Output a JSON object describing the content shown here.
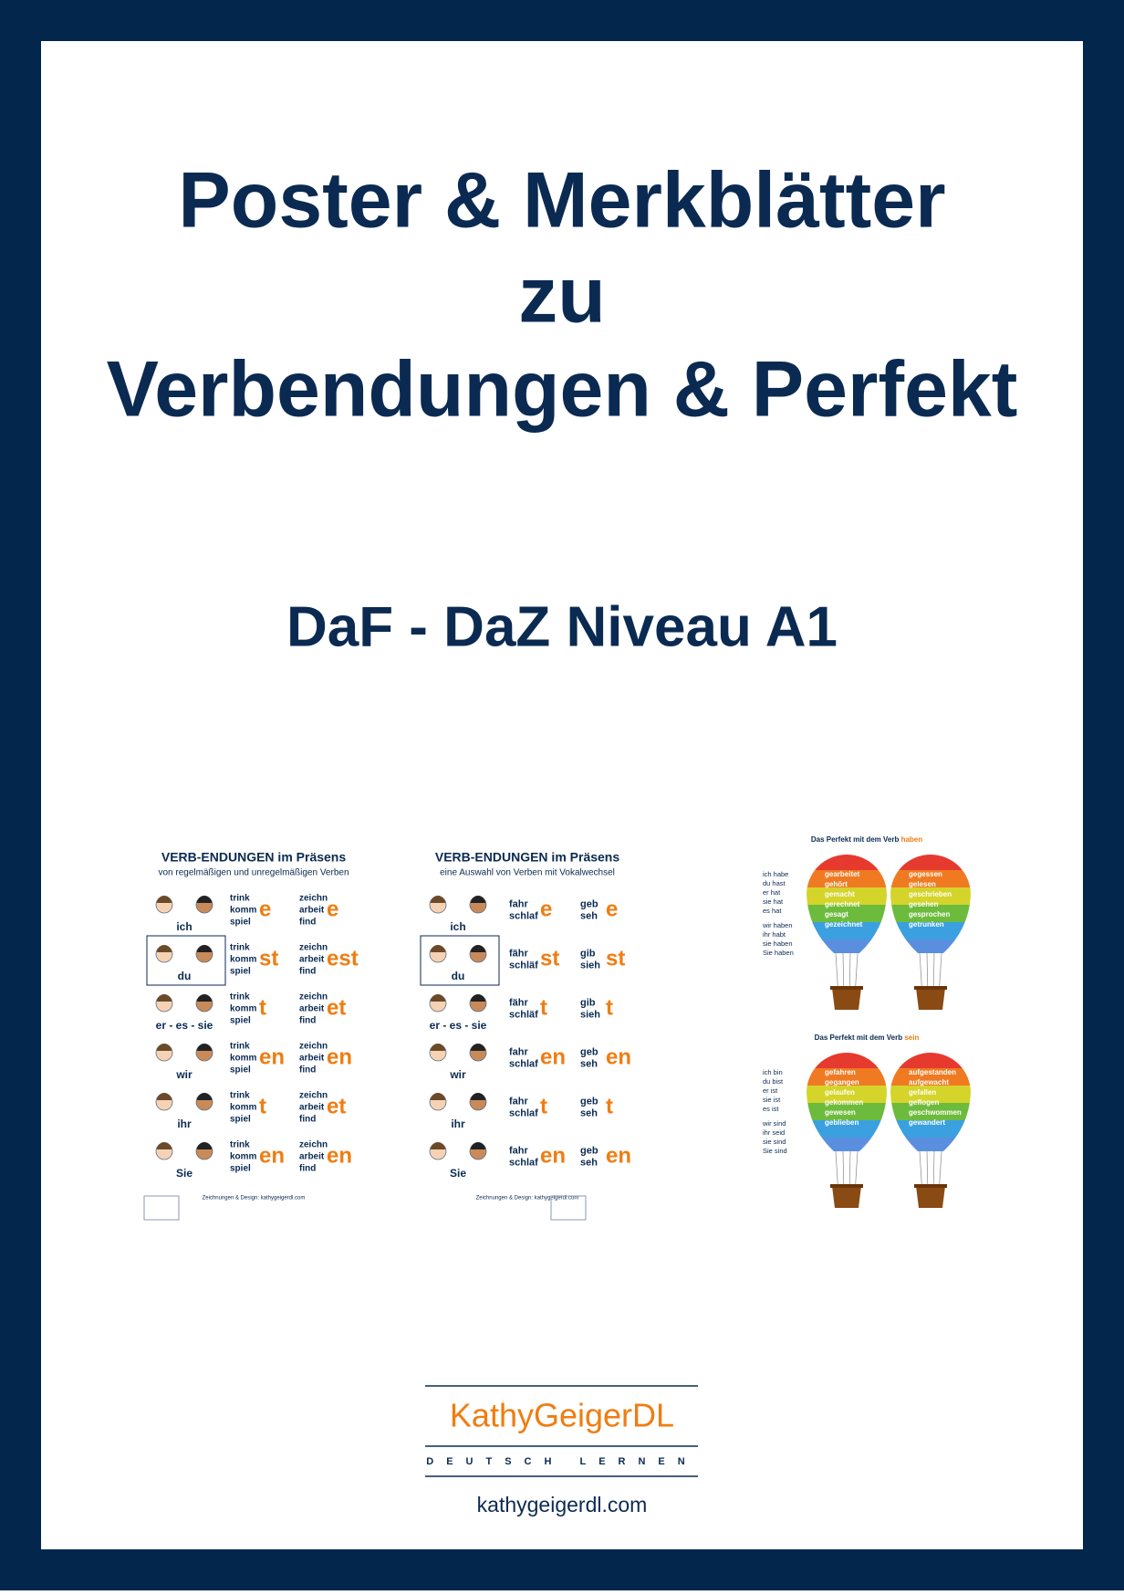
{
  "header": {
    "title_lines": [
      "Poster & Merkblätter",
      "zu",
      "Verbendungen & Perfekt"
    ],
    "subtitle": "DaF - DaZ Niveau A1"
  },
  "previews": [
    {
      "title": "VERB-ENDUNGEN im Präsens",
      "subtitle": "von regelmäßigen und unregelmäßigen Verben",
      "rows": [
        {
          "pronoun": "ich",
          "stems1": [
            "trink",
            "komm",
            "spiel"
          ],
          "ending1": "e",
          "stems2": [
            "zeichn",
            "arbeit",
            "find"
          ],
          "ending2": "e"
        },
        {
          "pronoun": "du",
          "stems1": [
            "trink",
            "komm",
            "spiel"
          ],
          "ending1": "st",
          "stems2": [
            "zeichn",
            "arbeit",
            "find"
          ],
          "ending2": "est"
        },
        {
          "pronoun": "er - es - sie",
          "stems1": [
            "trink",
            "komm",
            "spiel"
          ],
          "ending1": "t",
          "stems2": [
            "zeichn",
            "arbeit",
            "find"
          ],
          "ending2": "et"
        },
        {
          "pronoun": "wir",
          "stems1": [
            "trink",
            "komm",
            "spiel"
          ],
          "ending1": "en",
          "stems2": [
            "zeichn",
            "arbeit",
            "find"
          ],
          "ending2": "en"
        },
        {
          "pronoun": "ihr",
          "stems1": [
            "trink",
            "komm",
            "spiel"
          ],
          "ending1": "t",
          "stems2": [
            "zeichn",
            "arbeit",
            "find"
          ],
          "ending2": "et"
        },
        {
          "pronoun": "Sie",
          "stems1": [
            "trink",
            "komm",
            "spiel"
          ],
          "ending1": "en",
          "stems2": [
            "zeichn",
            "arbeit",
            "find"
          ],
          "ending2": "en"
        }
      ],
      "footer": "Zeichnungen & Design: kathygeigerdl.com"
    },
    {
      "title": "VERB-ENDUNGEN im Präsens",
      "subtitle": "eine Auswahl von Verben mit Vokalwechsel",
      "rows": [
        {
          "pronoun": "ich",
          "stems1": [
            "fahr",
            "schlaf"
          ],
          "ending1": "e",
          "stems2": [
            "geb",
            "seh"
          ],
          "ending2": "e"
        },
        {
          "pronoun": "du",
          "stems1": [
            "fähr",
            "schläf"
          ],
          "ending1": "st",
          "stems2": [
            "gib",
            "sieh"
          ],
          "ending2": "st"
        },
        {
          "pronoun": "er - es - sie",
          "stems1": [
            "fähr",
            "schläf"
          ],
          "ending1": "t",
          "stems2": [
            "gib",
            "sieh"
          ],
          "ending2": "t"
        },
        {
          "pronoun": "wir",
          "stems1": [
            "fahr",
            "schlaf"
          ],
          "ending1": "en",
          "stems2": [
            "geb",
            "seh"
          ],
          "ending2": "en"
        },
        {
          "pronoun": "ihr",
          "stems1": [
            "fahr",
            "schlaf"
          ],
          "ending1": "t",
          "stems2": [
            "geb",
            "seh"
          ],
          "ending2": "t"
        },
        {
          "pronoun": "Sie",
          "stems1": [
            "fahr",
            "schlaf"
          ],
          "ending1": "en",
          "stems2": [
            "geb",
            "seh"
          ],
          "ending2": "en"
        }
      ],
      "footer": "Zeichnungen & Design: kathygeigerdl.com"
    }
  ],
  "balloon_sheets": [
    {
      "title": "Das Perfekt mit dem Verb",
      "verb": "haben",
      "forms": [
        "ich habe",
        "du hast",
        "er hat",
        "sie hat",
        "es hat",
        "wir haben",
        "ihr habt",
        "sie haben",
        "Sie haben"
      ],
      "balloons": [
        [
          "gearbeitet",
          "gehört",
          "gemacht",
          "gerechnet",
          "gesagt",
          "gezeichnet"
        ],
        [
          "gegessen",
          "gelesen",
          "geschrieben",
          "gesehen",
          "gesprochen",
          "getrunken"
        ]
      ]
    },
    {
      "title": "Das Perfekt mit dem Verb",
      "verb": "sein",
      "forms": [
        "ich bin",
        "du bist",
        "er ist",
        "sie ist",
        "es ist",
        "wir sind",
        "ihr seid",
        "sie sind",
        "Sie sind"
      ],
      "balloons": [
        [
          "gefahren",
          "gegangen",
          "gelaufen",
          "gekommen",
          "gewesen",
          "geblieben"
        ],
        [
          "aufgestanden",
          "aufgewacht",
          "gefallen",
          "geflogen",
          "geschwommen",
          "gewandert"
        ]
      ]
    }
  ],
  "footer": {
    "brand": "KathyGeigerDL",
    "tagline": "DEUTSCH LERNEN",
    "url": "kathygeigerdl.com"
  }
}
